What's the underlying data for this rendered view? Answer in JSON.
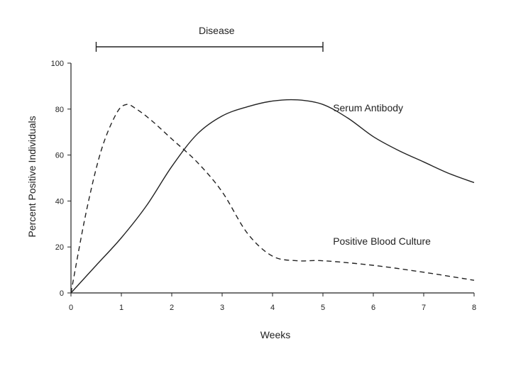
{
  "chart_data": {
    "type": "line",
    "title": "",
    "xlabel": "Weeks",
    "ylabel": "Percent Positive Individuals",
    "xlim": [
      0,
      8
    ],
    "ylim": [
      0,
      100
    ],
    "xticks": [
      "0",
      "1",
      "2",
      "3",
      "4",
      "5",
      "6",
      "7",
      "8"
    ],
    "yticks": [
      "0",
      "20",
      "40",
      "60",
      "80",
      "100"
    ],
    "grid": false,
    "series": [
      {
        "name": "Serum Antibody",
        "style": "solid",
        "x": [
          0,
          0.5,
          1,
          1.5,
          2,
          2.5,
          3,
          3.5,
          4,
          4.5,
          5,
          5.5,
          6,
          6.5,
          7,
          7.5,
          8
        ],
        "y": [
          0,
          12,
          24,
          38,
          55,
          69,
          77,
          81,
          83.5,
          84,
          82,
          76,
          68,
          62,
          57,
          52,
          48
        ]
      },
      {
        "name": "Positive Blood Culture",
        "style": "dashed",
        "x": [
          0,
          0.3,
          0.6,
          0.9,
          1.1,
          1.3,
          1.6,
          2,
          2.5,
          3,
          3.5,
          4,
          4.5,
          5,
          6,
          7,
          8
        ],
        "y": [
          0,
          35,
          62,
          78,
          82,
          80,
          75,
          67,
          57,
          44,
          26,
          16,
          14,
          14,
          12,
          9,
          5.5
        ]
      }
    ],
    "annotations": [
      {
        "text": "Serum Antibody",
        "x": 5.2,
        "y": 79
      },
      {
        "text": "Positive Blood Culture",
        "x": 5.2,
        "y": 21
      }
    ],
    "range_bar": {
      "label": "Disease",
      "x_start": 0.5,
      "x_end": 5
    }
  }
}
